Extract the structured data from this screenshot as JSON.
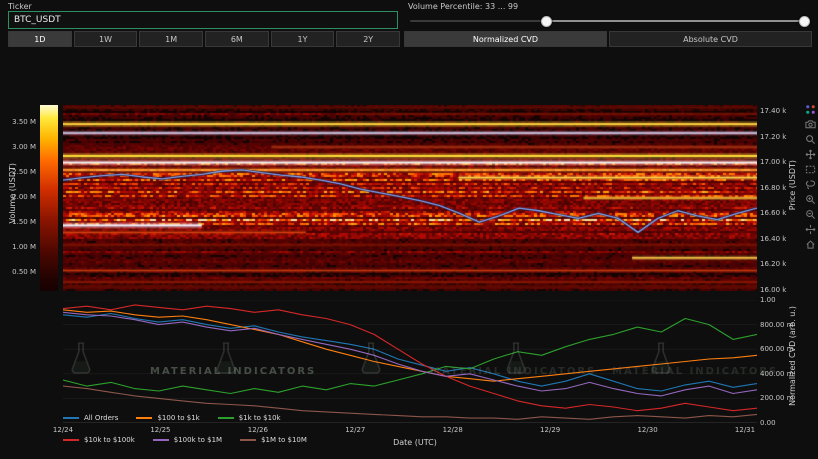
{
  "header": {
    "ticker_label": "Ticker",
    "ticker_value": "BTC_USDT",
    "volume_percentile_label": "Volume Percentile: 33 ... 99",
    "slider": {
      "handles_pct": [
        34,
        99
      ]
    }
  },
  "toolbar": {
    "range_buttons": [
      {
        "label": "1D",
        "active": true
      },
      {
        "label": "1W",
        "active": false
      },
      {
        "label": "1M",
        "active": false
      },
      {
        "label": "6M",
        "active": false
      },
      {
        "label": "1Y",
        "active": false
      },
      {
        "label": "2Y",
        "active": false
      }
    ],
    "tabs": [
      {
        "label": "Normalized CVD",
        "active": true
      },
      {
        "label": "Absolute CVD",
        "active": false
      }
    ]
  },
  "modebar": {
    "icons": [
      "plotly-logo",
      "camera",
      "zoom",
      "pan",
      "box-select",
      "lasso-select",
      "zoom-in",
      "zoom-out",
      "autoscale",
      "reset-axes"
    ]
  },
  "watermark": {
    "text": "MATERIAL INDICATORS"
  },
  "legend": {
    "items": [
      {
        "label": "All Orders",
        "color": "#1f77b4"
      },
      {
        "label": "$100 to $1k",
        "color": "#ff7f0e"
      },
      {
        "label": "$1k to $10k",
        "color": "#2ca02c"
      },
      {
        "label": "$10k to $100k",
        "color": "#d62728"
      },
      {
        "label": "$100k to $1M",
        "color": "#9467bd"
      },
      {
        "label": "$1M to $10M",
        "color": "#8c564b"
      }
    ]
  },
  "chart_data": [
    {
      "type": "heatmap",
      "name": "volume-at-price-heatmap",
      "yaxis": {
        "title": "Price (USDT)",
        "range": [
          15990,
          17450
        ],
        "ticks": [
          {
            "label": "17.40 k",
            "value": 17400
          },
          {
            "label": "17.20 k",
            "value": 17200
          },
          {
            "label": "17.00 k",
            "value": 17000
          },
          {
            "label": "16.80 k",
            "value": 16800
          },
          {
            "label": "16.60 k",
            "value": 16600
          },
          {
            "label": "16.40 k",
            "value": 16400
          },
          {
            "label": "16.20 k",
            "value": 16200
          },
          {
            "label": "16.00 k",
            "value": 16000
          }
        ]
      },
      "colorbar": {
        "title": "Volume (USDT)",
        "tick_labels": [
          "3.50 M",
          "3.00 M",
          "2.50 M",
          "2.00 M",
          "1.50 M",
          "1.00 M",
          "0.50 M"
        ]
      },
      "hot_zone": [
        16400,
        17000
      ],
      "bands": [
        {
          "price": 17430,
          "x0": 0,
          "x1": 1,
          "color": "#5f0c02",
          "height": 1.5
        },
        {
          "price": 17380,
          "x0": 0.4,
          "x1": 1,
          "color": "#6f1203",
          "height": 1.2
        },
        {
          "price": 17300,
          "x0": 0,
          "x1": 1,
          "color": "#ffd23a",
          "height": 2
        },
        {
          "price": 17230,
          "x0": 0,
          "x1": 1,
          "color": "#d9d4f8",
          "height": 1.5
        },
        {
          "price": 17120,
          "x0": 0.3,
          "x1": 1,
          "color": "#a83212",
          "height": 1.4
        },
        {
          "price": 17050,
          "x0": 0,
          "x1": 1,
          "color": "#ffdf3a",
          "height": 2
        },
        {
          "price": 16998,
          "x0": 0,
          "x1": 1,
          "color": "#f2f2f2",
          "height": 2
        },
        {
          "price": 16940,
          "x0": 0,
          "x1": 1,
          "color": "#ff9a2e",
          "height": 1.6
        },
        {
          "price": 16880,
          "x0": 0.57,
          "x1": 1,
          "color": "#ffd84a",
          "height": 1.6
        },
        {
          "price": 16720,
          "x0": 0.75,
          "x1": 1,
          "color": "#ffcf3a",
          "height": 1.3
        },
        {
          "price": 16505,
          "x0": 0,
          "x1": 0.2,
          "color": "#f4f0ff",
          "height": 2
        },
        {
          "price": 16450,
          "x0": 0,
          "x1": 0.35,
          "color": "#d5420e",
          "height": 1.3
        },
        {
          "price": 16350,
          "x0": 0,
          "x1": 1,
          "color": "#7a1202",
          "height": 1.4
        },
        {
          "price": 16250,
          "x0": 0.82,
          "x1": 1,
          "color": "#ffcf4a",
          "height": 1.5
        },
        {
          "price": 16150,
          "x0": 0,
          "x1": 1,
          "color": "#c23a10",
          "height": 1.2
        },
        {
          "price": 16060,
          "x0": 0,
          "x1": 1,
          "color": "#8a1404",
          "height": 1.8
        },
        {
          "price": 16020,
          "x0": 0,
          "x1": 1,
          "color": "#5c0c02",
          "height": 1.4
        }
      ],
      "price_line": {
        "name": "BTC_USDT price",
        "color": "#8aa8f8",
        "values": [
          16860,
          16880,
          16895,
          16905,
          16885,
          16870,
          16890,
          16905,
          16930,
          16940,
          16920,
          16900,
          16885,
          16860,
          16830,
          16790,
          16760,
          16730,
          16700,
          16660,
          16600,
          16530,
          16580,
          16640,
          16620,
          16590,
          16560,
          16600,
          16560,
          16450,
          16560,
          16620,
          16580,
          16550,
          16600,
          16640
        ]
      }
    },
    {
      "type": "line",
      "name": "normalized-cvd",
      "xlabel": "Date (UTC)",
      "x_ticks": [
        "12/24",
        "12/25",
        "12/26",
        "12/27",
        "12/28",
        "12/29",
        "12/30",
        "12/31"
      ],
      "yaxis": {
        "title": "Normalized CVD (arb. u.)",
        "range": [
          0,
          1
        ],
        "tick_labels": [
          "1.00",
          "800.00 m",
          "600.00 m",
          "400.00 m",
          "200.00 m",
          "0.00"
        ],
        "tick_values": [
          1,
          0.8,
          0.6,
          0.4,
          0.2,
          0
        ]
      },
      "series": [
        {
          "name": "All Orders",
          "color": "#1f77b4",
          "values": [
            0.88,
            0.86,
            0.89,
            0.85,
            0.82,
            0.84,
            0.8,
            0.77,
            0.79,
            0.74,
            0.7,
            0.67,
            0.64,
            0.6,
            0.52,
            0.47,
            0.42,
            0.45,
            0.4,
            0.34,
            0.3,
            0.34,
            0.4,
            0.34,
            0.28,
            0.26,
            0.31,
            0.34,
            0.29,
            0.32
          ]
        },
        {
          "name": "$100 to $1k",
          "color": "#ff7f0e",
          "values": [
            0.92,
            0.9,
            0.91,
            0.88,
            0.86,
            0.87,
            0.84,
            0.8,
            0.76,
            0.72,
            0.66,
            0.6,
            0.55,
            0.5,
            0.46,
            0.42,
            0.38,
            0.36,
            0.34,
            0.36,
            0.38,
            0.4,
            0.42,
            0.44,
            0.46,
            0.48,
            0.5,
            0.52,
            0.53,
            0.55
          ]
        },
        {
          "name": "$1k to $10k",
          "color": "#2ca02c",
          "values": [
            0.35,
            0.3,
            0.33,
            0.28,
            0.26,
            0.3,
            0.27,
            0.24,
            0.28,
            0.25,
            0.3,
            0.27,
            0.32,
            0.3,
            0.35,
            0.4,
            0.46,
            0.44,
            0.52,
            0.58,
            0.55,
            0.62,
            0.68,
            0.72,
            0.78,
            0.74,
            0.85,
            0.8,
            0.68,
            0.72
          ]
        },
        {
          "name": "$10k to $100k",
          "color": "#d62728",
          "values": [
            0.93,
            0.95,
            0.92,
            0.96,
            0.94,
            0.92,
            0.95,
            0.93,
            0.9,
            0.92,
            0.88,
            0.85,
            0.8,
            0.72,
            0.6,
            0.48,
            0.38,
            0.3,
            0.24,
            0.18,
            0.14,
            0.12,
            0.15,
            0.13,
            0.1,
            0.12,
            0.16,
            0.13,
            0.1,
            0.12
          ]
        },
        {
          "name": "$100k to $1M",
          "color": "#9467bd",
          "values": [
            0.9,
            0.88,
            0.87,
            0.84,
            0.8,
            0.82,
            0.78,
            0.75,
            0.77,
            0.72,
            0.68,
            0.64,
            0.6,
            0.55,
            0.48,
            0.42,
            0.38,
            0.4,
            0.35,
            0.3,
            0.26,
            0.28,
            0.33,
            0.28,
            0.24,
            0.22,
            0.27,
            0.3,
            0.24,
            0.27
          ]
        },
        {
          "name": "$1M to $10M",
          "color": "#8c564b",
          "values": [
            0.3,
            0.28,
            0.25,
            0.22,
            0.2,
            0.18,
            0.16,
            0.15,
            0.14,
            0.12,
            0.1,
            0.09,
            0.08,
            0.07,
            0.06,
            0.05,
            0.05,
            0.04,
            0.04,
            0.03,
            0.05,
            0.04,
            0.03,
            0.05,
            0.06,
            0.05,
            0.04,
            0.06,
            0.05,
            0.07
          ]
        }
      ]
    }
  ]
}
